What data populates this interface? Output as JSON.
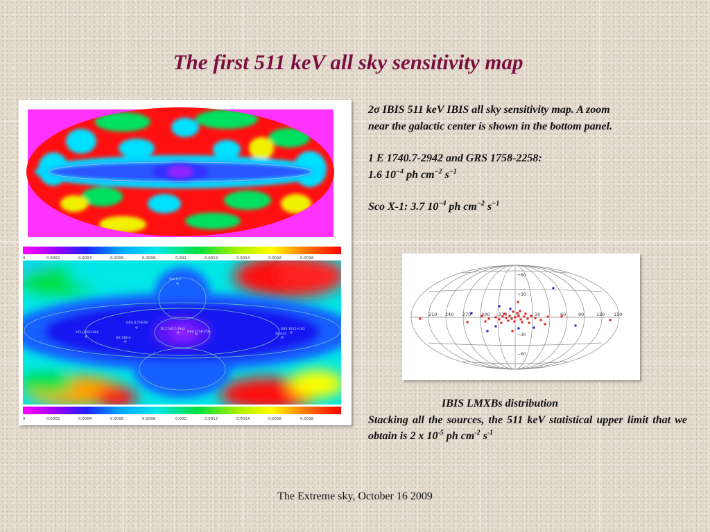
{
  "slide": {
    "title": "The first 511 keV all sky sensitivity map",
    "footer": "The Extreme sky, October 16 2009"
  },
  "caption": {
    "line1_a": "2σ IBIS 511 keV IBIS all sky sensitivity map. A zoom",
    "line1_b": "near the galactic center is shown in the bottom panel.",
    "sources": "1 E 1740.7-2942 and GRS 1758-2258:",
    "flux1_prefix": "1.6 10",
    "flux1_exp": "−4",
    "flux1_unit1": " ph cm",
    "flux1_unit1_exp": "−2",
    "flux1_unit2": " s",
    "flux1_unit2_exp": "−1",
    "sco_prefix": "Sco X-1:  3.7 10",
    "sco_exp": "−4",
    "sco_unit1": " ph cm",
    "sco_unit1_exp": "−2",
    "sco_unit2": " s",
    "sco_unit2_exp": "−1"
  },
  "colorbar": {
    "ticks": [
      "0",
      "0.0002",
      "0.0004",
      "0.0006",
      "0.0008",
      "0.001",
      "0.0012",
      "0.0014",
      "0.0016",
      "0.0018"
    ]
  },
  "zoom_labels": {
    "sco": "Sco X-1",
    "grs1": "GRS J1758-48",
    "ie": "1E 1740.7-2942",
    "grs2": "GRS 1758-258",
    "xte": "XTE J1550-564",
    "gx": "GX 339-4",
    "grs3": "GRS 1915+105",
    "ss": "SS 433"
  },
  "lmxb_map": {
    "lon_labels": [
      "210",
      "240",
      "270",
      "300",
      "330",
      "0",
      "30",
      "60",
      "90",
      "120",
      "150"
    ],
    "lat_labels": [
      "+60",
      "+30",
      "−30",
      "−60"
    ],
    "red_color": "#e01818",
    "blue_color": "#1818d0"
  },
  "lmxb": {
    "heading": "IBIS LMXBs distribution",
    "text_a": "Stacking all the sources, the 511 keV  statistical upper limit that we obtain is 2 x 10",
    "exp1": "-5",
    "text_b": " ph cm",
    "exp2": "-2",
    "text_c": " s",
    "exp3": "-1"
  }
}
